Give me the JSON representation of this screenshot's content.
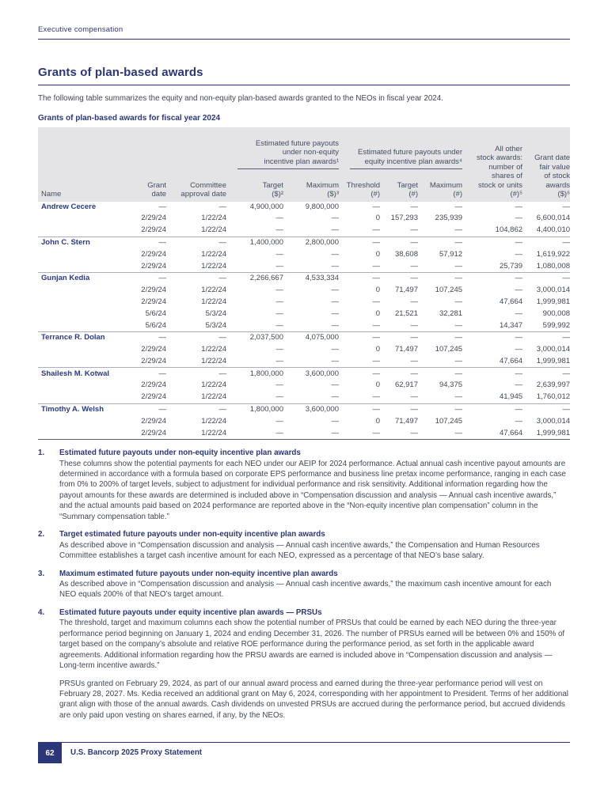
{
  "page": {
    "eyebrow": "Executive compensation",
    "footer": {
      "page_number": "62",
      "label": "U.S. Bancorp 2025 Proxy Statement"
    }
  },
  "section": {
    "title": "Grants of plan-based awards",
    "intro": "The following table summarizes the equity and non-equity plan-based awards granted to the NEOs in fiscal year 2024."
  },
  "table": {
    "title": "Grants of plan-based awards for fiscal year 2024",
    "col_headers": {
      "name": "Name",
      "grant_date": "Grant\ndate",
      "committee_approval": "Committee\napproval date",
      "non_equity_group": "Estimated future payouts\nunder non-equity\nincentive plan awards¹",
      "equity_group": "Estimated future payouts under\nequity incentive plan awards⁴",
      "target_usd": "Target\n($)²",
      "maximum_usd": "Maximum\n($)³",
      "threshold_shares": "Threshold\n(#)",
      "target_shares": "Target\n(#)",
      "maximum_shares": "Maximum\n(#)",
      "all_other_stock": "All other\nstock awards:\nnumber of\nshares of\nstock or units\n(#)⁵",
      "grant_date_fair_value": "Grant date\nfair value\nof stock\nawards\n($)⁶"
    },
    "rows": [
      {
        "name": "Andrew Cecere",
        "cells": [
          "—",
          "—",
          "4,900,000",
          "9,800,000",
          "—",
          "—",
          "—",
          "—",
          "—"
        ]
      },
      {
        "name": "",
        "cells": [
          "2/29/24",
          "1/22/24",
          "—",
          "—",
          "0",
          "157,293",
          "235,939",
          "—",
          "6,600,014"
        ]
      },
      {
        "name": "",
        "cells": [
          "2/29/24",
          "1/22/24",
          "—",
          "—",
          "—",
          "—",
          "—",
          "104,862",
          "4,400,010"
        ]
      },
      {
        "name": "John C. Stern",
        "cells": [
          "—",
          "—",
          "1,400,000",
          "2,800,000",
          "—",
          "—",
          "—",
          "—",
          "—"
        ]
      },
      {
        "name": "",
        "cells": [
          "2/29/24",
          "1/22/24",
          "—",
          "—",
          "0",
          "38,608",
          "57,912",
          "—",
          "1,619,922"
        ]
      },
      {
        "name": "",
        "cells": [
          "2/29/24",
          "1/22/24",
          "—",
          "—",
          "—",
          "—",
          "—",
          "25,739",
          "1,080,008"
        ]
      },
      {
        "name": "Gunjan Kedia",
        "cells": [
          "—",
          "—",
          "2,266,667",
          "4,533,334",
          "—",
          "—",
          "—",
          "—",
          "—"
        ]
      },
      {
        "name": "",
        "cells": [
          "2/29/24",
          "1/22/24",
          "—",
          "—",
          "0",
          "71,497",
          "107,245",
          "—",
          "3,000,014"
        ]
      },
      {
        "name": "",
        "cells": [
          "2/29/24",
          "1/22/24",
          "—",
          "—",
          "—",
          "—",
          "—",
          "47,664",
          "1,999,981"
        ]
      },
      {
        "name": "",
        "cells": [
          "5/6/24",
          "5/3/24",
          "—",
          "—",
          "0",
          "21,521",
          "32,281",
          "—",
          "900,008"
        ]
      },
      {
        "name": "",
        "cells": [
          "5/6/24",
          "5/3/24",
          "—",
          "—",
          "—",
          "—",
          "—",
          "14,347",
          "599,992"
        ]
      },
      {
        "name": "Terrance R. Dolan",
        "cells": [
          "—",
          "—",
          "2,037,500",
          "4,075,000",
          "—",
          "—",
          "—",
          "—",
          "—"
        ]
      },
      {
        "name": "",
        "cells": [
          "2/29/24",
          "1/22/24",
          "—",
          "—",
          "0",
          "71,497",
          "107,245",
          "—",
          "3,000,014"
        ]
      },
      {
        "name": "",
        "cells": [
          "2/29/24",
          "1/22/24",
          "—",
          "—",
          "—",
          "—",
          "—",
          "47,664",
          "1,999,981"
        ]
      },
      {
        "name": "Shailesh M. Kotwal",
        "cells": [
          "—",
          "—",
          "1,800,000",
          "3,600,000",
          "—",
          "—",
          "—",
          "—",
          "—"
        ]
      },
      {
        "name": "",
        "cells": [
          "2/29/24",
          "1/22/24",
          "—",
          "—",
          "0",
          "62,917",
          "94,375",
          "—",
          "2,639,997"
        ]
      },
      {
        "name": "",
        "cells": [
          "2/29/24",
          "1/22/24",
          "—",
          "—",
          "—",
          "—",
          "—",
          "41,945",
          "1,760,012"
        ]
      },
      {
        "name": "Timothy A. Welsh",
        "cells": [
          "—",
          "—",
          "1,800,000",
          "3,600,000",
          "—",
          "—",
          "—",
          "—",
          "—"
        ]
      },
      {
        "name": "",
        "cells": [
          "2/29/24",
          "1/22/24",
          "—",
          "—",
          "0",
          "71,497",
          "107,245",
          "—",
          "3,000,014"
        ]
      },
      {
        "name": "",
        "cells": [
          "2/29/24",
          "1/22/24",
          "—",
          "—",
          "—",
          "—",
          "—",
          "47,664",
          "1,999,981"
        ]
      }
    ]
  },
  "footnotes": [
    {
      "num": "1.",
      "title": "Estimated future payouts under non-equity incentive plan awards",
      "paras": [
        "These columns show the potential payments for each NEO under our AEIP for 2024 performance. Actual annual cash incentive payout amounts are determined in accordance with a formula based on corporate EPS performance and business line pretax income performance, ranging in each case from 0% to 200% of target levels, subject to adjustment for individual performance and risk sensitivity. Additional information regarding how the payout amounts for these awards are determined is included above in “Compensation discussion and analysis — Annual cash incentive awards,” and the actual amounts paid based on 2024 performance are reported above in the “Non-equity incentive plan compensation” column in the “Summary compensation table.”"
      ]
    },
    {
      "num": "2.",
      "title": "Target estimated future payouts under non-equity incentive plan awards",
      "paras": [
        "As described above in “Compensation discussion and analysis — Annual cash incentive awards,” the Compensation and Human Resources Committee establishes a target cash incentive amount for each NEO, expressed as a percentage of that NEO’s base salary."
      ]
    },
    {
      "num": "3.",
      "title": "Maximum estimated future payouts under non-equity incentive plan awards",
      "paras": [
        "As described above in “Compensation discussion and analysis — Annual cash incentive awards,” the maximum cash incentive amount for each NEO equals 200% of that NEO’s target amount."
      ]
    },
    {
      "num": "4.",
      "title": "Estimated future payouts under equity incentive plan awards — PRSUs",
      "paras": [
        "The threshold, target and maximum columns each show the potential number of PRSUs that could be earned by each NEO during the three-year performance period beginning on January 1, 2024 and ending December 31, 2026. The number of PRSUs earned will be between 0% and 150% of target based on the company’s absolute and relative ROE performance during the performance period, as set forth in the applicable award agreements. Additional information regarding how the PRSU awards are earned is included above in “Compensation discussion and analysis — Long-term incentive awards.”",
        "PRSUs granted on February 29, 2024, as part of our annual award process and earned during the three-year performance period will vest on February 28, 2027. Ms. Kedia received an additional grant on May 6, 2024, corresponding with her appointment to President. Terms of her additional grant align with those of the annual awards. Cash dividends on unvested PRSUs are accrued during the performance period, but accrued dividends are only paid upon vesting on shares earned, if any, by the NEOs."
      ]
    }
  ]
}
